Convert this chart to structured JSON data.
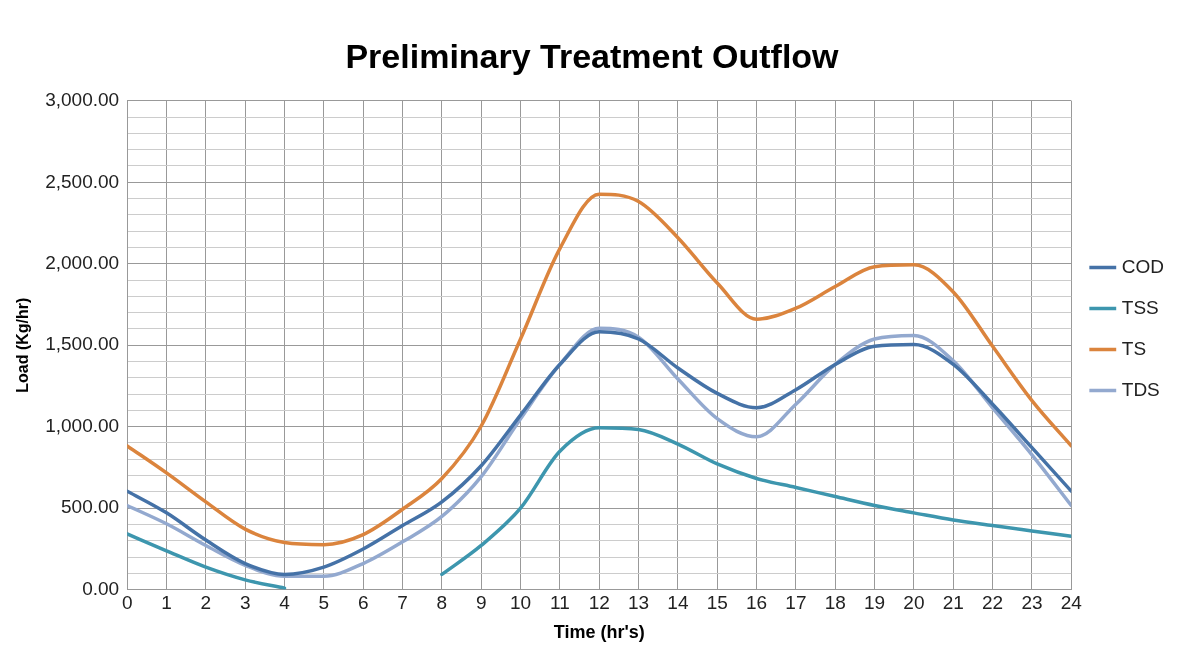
{
  "chart_data": {
    "type": "line",
    "title": "Preliminary Treatment Outflow",
    "xlabel": "Time (hr's)",
    "ylabel": "Load (Kg/hr)",
    "x": [
      0,
      1,
      2,
      3,
      4,
      5,
      6,
      7,
      8,
      9,
      10,
      11,
      12,
      13,
      14,
      15,
      16,
      17,
      18,
      19,
      20,
      21,
      22,
      23,
      24
    ],
    "series": [
      {
        "name": "COD",
        "color": "#4572a7",
        "values": [
          604,
          471,
          304,
          160,
          93,
          138,
          249,
          393,
          538,
          760,
          1071,
          1382,
          1582,
          1538,
          1360,
          1204,
          1116,
          1227,
          1382,
          1493,
          1504,
          1382,
          1138,
          871,
          604
        ]
      },
      {
        "name": "TSS",
        "color": "#3d96ae",
        "values": [
          342,
          238,
          138,
          60,
          9,
          null,
          null,
          null,
          93,
          271,
          500,
          849,
          993,
          982,
          893,
          771,
          682,
          627,
          571,
          516,
          471,
          427,
          393,
          360,
          327
        ]
      },
      {
        "name": "TS",
        "color": "#db843d",
        "values": [
          882,
          716,
          538,
          371,
          289,
          276,
          338,
          493,
          682,
          1004,
          1538,
          2093,
          2427,
          2382,
          2160,
          1882,
          1660,
          1727,
          1860,
          1982,
          1993,
          1827,
          1493,
          1160,
          882
        ]
      },
      {
        "name": "TDS",
        "color": "#93a9cf",
        "values": [
          516,
          404,
          271,
          149,
          82,
          82,
          160,
          293,
          449,
          693,
          1049,
          1382,
          1604,
          1549,
          1293,
          1049,
          938,
          1138,
          1382,
          1538,
          1560,
          1404,
          1116,
          827,
          516
        ]
      }
    ],
    "xlim": [
      0,
      24
    ],
    "xticks": [
      0,
      1,
      2,
      3,
      4,
      5,
      6,
      7,
      8,
      9,
      10,
      11,
      12,
      13,
      14,
      15,
      16,
      17,
      18,
      19,
      20,
      21,
      22,
      23,
      24
    ],
    "ylim": [
      0,
      3000
    ],
    "yticks": [
      {
        "value": 0,
        "label": "0.00"
      },
      {
        "value": 100,
        "label": null
      },
      {
        "value": 200,
        "label": null
      },
      {
        "value": 300,
        "label": null
      },
      {
        "value": 400,
        "label": null
      },
      {
        "value": 500,
        "label": "500.00"
      },
      {
        "value": 600,
        "label": null
      },
      {
        "value": 700,
        "label": null
      },
      {
        "value": 800,
        "label": null
      },
      {
        "value": 900,
        "label": null
      },
      {
        "value": 1000,
        "label": "1,000.00"
      },
      {
        "value": 1100,
        "label": null
      },
      {
        "value": 1200,
        "label": null
      },
      {
        "value": 1300,
        "label": null
      },
      {
        "value": 1400,
        "label": null
      },
      {
        "value": 1500,
        "label": "1,500.00"
      },
      {
        "value": 1600,
        "label": null
      },
      {
        "value": 1700,
        "label": null
      },
      {
        "value": 1800,
        "label": null
      },
      {
        "value": 1900,
        "label": null
      },
      {
        "value": 2000,
        "label": "2,000.00"
      },
      {
        "value": 2100,
        "label": null
      },
      {
        "value": 2200,
        "label": null
      },
      {
        "value": 2300,
        "label": null
      },
      {
        "value": 2400,
        "label": null
      },
      {
        "value": 2500,
        "label": "2,500.00"
      },
      {
        "value": 2600,
        "label": null
      },
      {
        "value": 2700,
        "label": null
      },
      {
        "value": 2800,
        "label": null
      },
      {
        "value": 2900,
        "label": null
      },
      {
        "value": 3000,
        "label": "3,000.00"
      }
    ],
    "grid": true,
    "legend": "right",
    "marker": "none",
    "line_style": "solid"
  }
}
